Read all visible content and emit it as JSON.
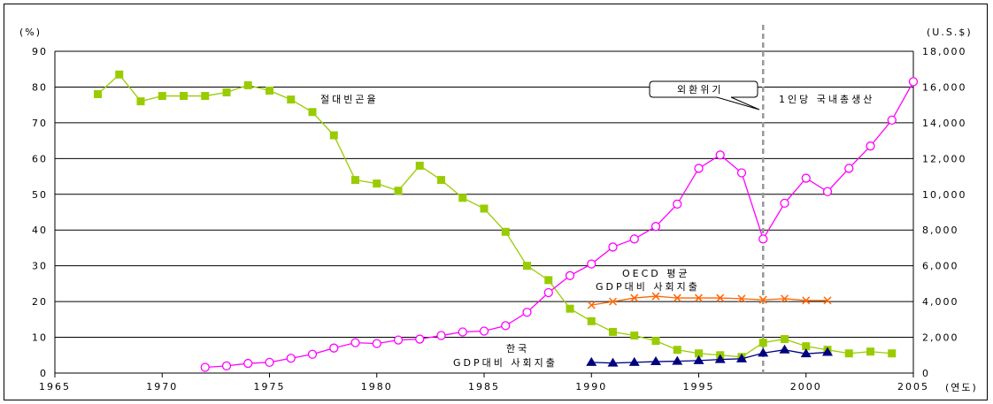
{
  "chart_data": {
    "type": "line",
    "x_ticks": [
      "1965",
      "1970",
      "1975",
      "1980",
      "1985",
      "1990",
      "1995",
      "2000",
      "2005"
    ],
    "x_range": [
      1965,
      2005
    ],
    "xlabel": "(연도)",
    "left_axis": {
      "label": "(%)",
      "range": [
        0,
        90
      ],
      "ticks": [
        "0",
        "10",
        "20",
        "30",
        "40",
        "50",
        "60",
        "70",
        "80",
        "90"
      ]
    },
    "right_axis": {
      "label": "(U.S.$)",
      "range": [
        0,
        18000
      ],
      "ticks": [
        "0",
        "2,000",
        "4,000",
        "6,000",
        "8,000",
        "10,000",
        "12,000",
        "14,000",
        "16,000",
        "18,000"
      ]
    },
    "grid": "horizontal",
    "series": [
      {
        "name": "절대빈곤율",
        "axis": "left",
        "color": "#99cc00",
        "marker": "square",
        "x": [
          1967,
          1968,
          1969,
          1970,
          1971,
          1972,
          1973,
          1974,
          1975,
          1976,
          1977,
          1978,
          1979,
          1980,
          1981,
          1982,
          1983,
          1984,
          1985,
          1986,
          1987,
          1988,
          1989,
          1990,
          1991,
          1992,
          1993,
          1994,
          1995,
          1996,
          1997,
          1998,
          1999,
          2000,
          2001,
          2002,
          2003,
          2004
        ],
        "y": [
          78,
          83.5,
          76,
          77.5,
          77.5,
          77.5,
          78.5,
          80.5,
          79,
          76.5,
          73,
          66.5,
          54,
          53,
          51,
          58,
          54,
          49,
          46,
          39.5,
          30,
          26,
          18,
          14.5,
          11.5,
          10.5,
          9,
          6.5,
          5.5,
          5,
          4.5,
          8.5,
          9.5,
          7.5,
          6.5,
          5.5,
          6,
          5.5
        ]
      },
      {
        "name": "1인당 국내총생산",
        "axis": "right",
        "color": "#ff00ff",
        "marker": "circle",
        "x": [
          1972,
          1973,
          1974,
          1975,
          1976,
          1977,
          1978,
          1979,
          1980,
          1981,
          1982,
          1983,
          1984,
          1985,
          1986,
          1987,
          1988,
          1989,
          1990,
          1991,
          1992,
          1993,
          1994,
          1995,
          1996,
          1997,
          1998,
          1999,
          2000,
          2001,
          2002,
          2003,
          2004,
          2005
        ],
        "y": [
          320,
          400,
          540,
          600,
          830,
          1050,
          1400,
          1700,
          1650,
          1850,
          1900,
          2100,
          2300,
          2350,
          2650,
          3400,
          4500,
          5450,
          6100,
          7050,
          7500,
          8200,
          9450,
          11450,
          12200,
          11200,
          7500,
          9500,
          10900,
          10150,
          11450,
          12700,
          14150,
          16300
        ]
      },
      {
        "name": "OECD 평균 GDP대비 사회지출",
        "axis": "left",
        "color": "#ff6600",
        "marker": "x",
        "x": [
          1990,
          1991,
          1992,
          1993,
          1994,
          1995,
          1996,
          1997,
          1998,
          1999,
          2000,
          2001
        ],
        "y": [
          19,
          20,
          21,
          21.5,
          21,
          21,
          21,
          20.8,
          20.5,
          20.8,
          20.3,
          20.3
        ]
      },
      {
        "name": "한국 GDP대비 사회지출",
        "axis": "left",
        "color": "#000080",
        "marker": "triangle",
        "x": [
          1990,
          1991,
          1992,
          1993,
          1994,
          1995,
          1996,
          1997,
          1998,
          1999,
          2000,
          2001
        ],
        "y": [
          3,
          2.8,
          3,
          3.2,
          3.3,
          3.5,
          3.8,
          4,
          5.6,
          6.5,
          5.4,
          5.8
        ]
      }
    ],
    "annotations": {
      "poverty_label": "절대빈곤율",
      "gdp_label": "1인당 국내총생산",
      "oecd_label_1": "OECD 평균",
      "oecd_label_2": "GDP대비 사회지출",
      "korea_label_1": "한국",
      "korea_label_2": "GDP대비 사회지출",
      "crisis_label": "외환위기",
      "crisis_year": 1998
    }
  }
}
